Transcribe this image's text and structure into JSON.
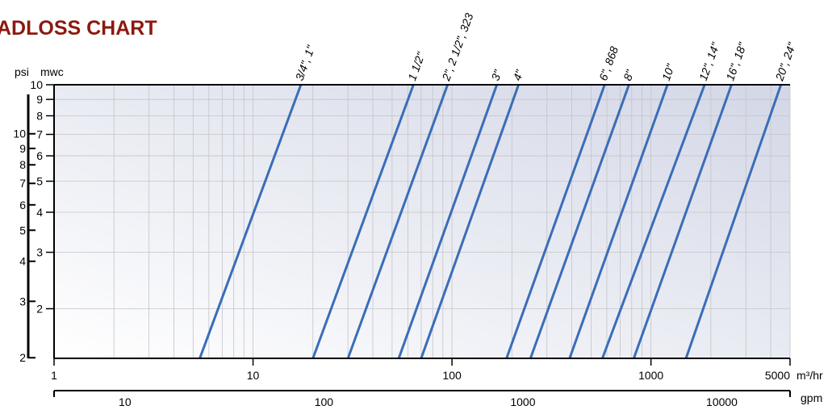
{
  "title": "ADLOSS CHART",
  "colors": {
    "title": "#8b1a0f",
    "line": "#3a6db8",
    "grid": "#c4c4c8",
    "axis": "#000000",
    "plot_bg_light": "#ffffff",
    "plot_bg_dark": "#d6dae8"
  },
  "axis_labels": {
    "psi": "psi",
    "mwc": "mwc",
    "m3hr": "m³/hr",
    "gpm": "gpm"
  },
  "chart_data": {
    "type": "line",
    "title": "ADLOSS CHART",
    "x_axis": {
      "label": "m³/hr",
      "scale": "log",
      "range": [
        1,
        5000
      ],
      "ticks": [
        1,
        10,
        100,
        1000,
        5000
      ],
      "tick_labels": [
        "1",
        "10",
        "100",
        "1000",
        "5000"
      ]
    },
    "x2_axis": {
      "label": "gpm",
      "scale": "log",
      "range": [
        4.403,
        22015
      ],
      "ticks": [
        10,
        100,
        1000,
        10000
      ],
      "tick_labels": [
        "10",
        "100",
        "1000",
        "10000"
      ]
    },
    "y_axis": {
      "label": "mwc",
      "scale": "log",
      "range": [
        1.4,
        10
      ],
      "ticks": [
        2,
        3,
        4,
        5,
        6,
        7,
        8,
        9,
        10
      ],
      "tick_labels": [
        "2",
        "3",
        "4",
        "5",
        "6",
        "7",
        "8",
        "9",
        "10"
      ]
    },
    "y2_axis": {
      "label": "psi",
      "ticks": [
        2,
        3,
        4,
        5,
        6,
        7,
        8,
        9,
        10
      ],
      "tick_labels": [
        "2",
        "3",
        "4",
        "5",
        "6",
        "7",
        "8",
        "9",
        "10"
      ]
    },
    "grid": true,
    "series": [
      {
        "name": "3/4\", 1\"",
        "x": [
          5.4,
          17.4
        ],
        "y": [
          1.4,
          10
        ]
      },
      {
        "name": "1 1/2\"",
        "x": [
          20,
          64
        ],
        "y": [
          1.4,
          10
        ]
      },
      {
        "name": "2\", 2 1/2\", 323",
        "x": [
          30,
          95
        ],
        "y": [
          1.4,
          10
        ]
      },
      {
        "name": "3\"",
        "x": [
          54,
          168
        ],
        "y": [
          1.4,
          10
        ]
      },
      {
        "name": "4\"",
        "x": [
          70,
          216
        ],
        "y": [
          1.4,
          10
        ]
      },
      {
        "name": "6\", 868",
        "x": [
          188,
          585
        ],
        "y": [
          1.4,
          10
        ]
      },
      {
        "name": "8\"",
        "x": [
          248,
          775
        ],
        "y": [
          1.4,
          10
        ]
      },
      {
        "name": "10\"",
        "x": [
          390,
          1210
        ],
        "y": [
          1.4,
          10
        ]
      },
      {
        "name": "12\", 14\"",
        "x": [
          570,
          1860
        ],
        "y": [
          1.4,
          10
        ]
      },
      {
        "name": "16\", 18\"",
        "x": [
          820,
          2540
        ],
        "y": [
          1.4,
          10
        ]
      },
      {
        "name": "20\", 24\"",
        "x": [
          1500,
          4500
        ],
        "y": [
          1.4,
          10
        ]
      }
    ]
  }
}
